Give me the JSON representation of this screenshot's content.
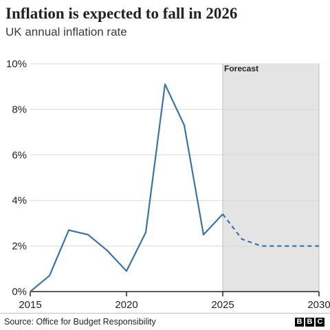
{
  "title": "Inflation is expected to fall in 2026",
  "subtitle": "UK annual inflation rate",
  "source": "Source: Office for Budget Responsibility",
  "logo": [
    "B",
    "B",
    "C"
  ],
  "colors": {
    "line": "#3b73a6",
    "forecast_band": "#e4e4e4",
    "grid": "#d9d9d9",
    "axis": "#222222"
  },
  "chart_data": {
    "type": "line",
    "title": "Inflation is expected to fall in 2026",
    "subtitle": "UK annual inflation rate",
    "xlabel": "",
    "ylabel": "",
    "xlim": [
      2015,
      2030
    ],
    "ylim": [
      0,
      10
    ],
    "x_ticks": [
      2015,
      2020,
      2025,
      2030
    ],
    "x_tick_labels": [
      "2015",
      "2020",
      "2025",
      "2030"
    ],
    "y_ticks": [
      0,
      2,
      4,
      6,
      8,
      10
    ],
    "y_tick_labels": [
      "0%",
      "2%",
      "4%",
      "6%",
      "8%",
      "10%"
    ],
    "grid": "horizontal",
    "forecast_band": {
      "x_start": 2025,
      "x_end": 2030,
      "label": "Forecast"
    },
    "series": [
      {
        "style": "solid",
        "x": [
          2015,
          2016,
          2017,
          2018,
          2019,
          2020,
          2021,
          2022,
          2023,
          2024,
          2025
        ],
        "y": [
          0.0,
          0.7,
          2.7,
          2.5,
          1.8,
          0.9,
          2.6,
          9.1,
          7.3,
          2.5,
          3.4
        ]
      },
      {
        "style": "dashed",
        "x": [
          2025,
          2026,
          2027,
          2028,
          2029,
          2030
        ],
        "y": [
          3.4,
          2.3,
          2.0,
          2.0,
          2.0,
          2.0
        ]
      }
    ]
  }
}
